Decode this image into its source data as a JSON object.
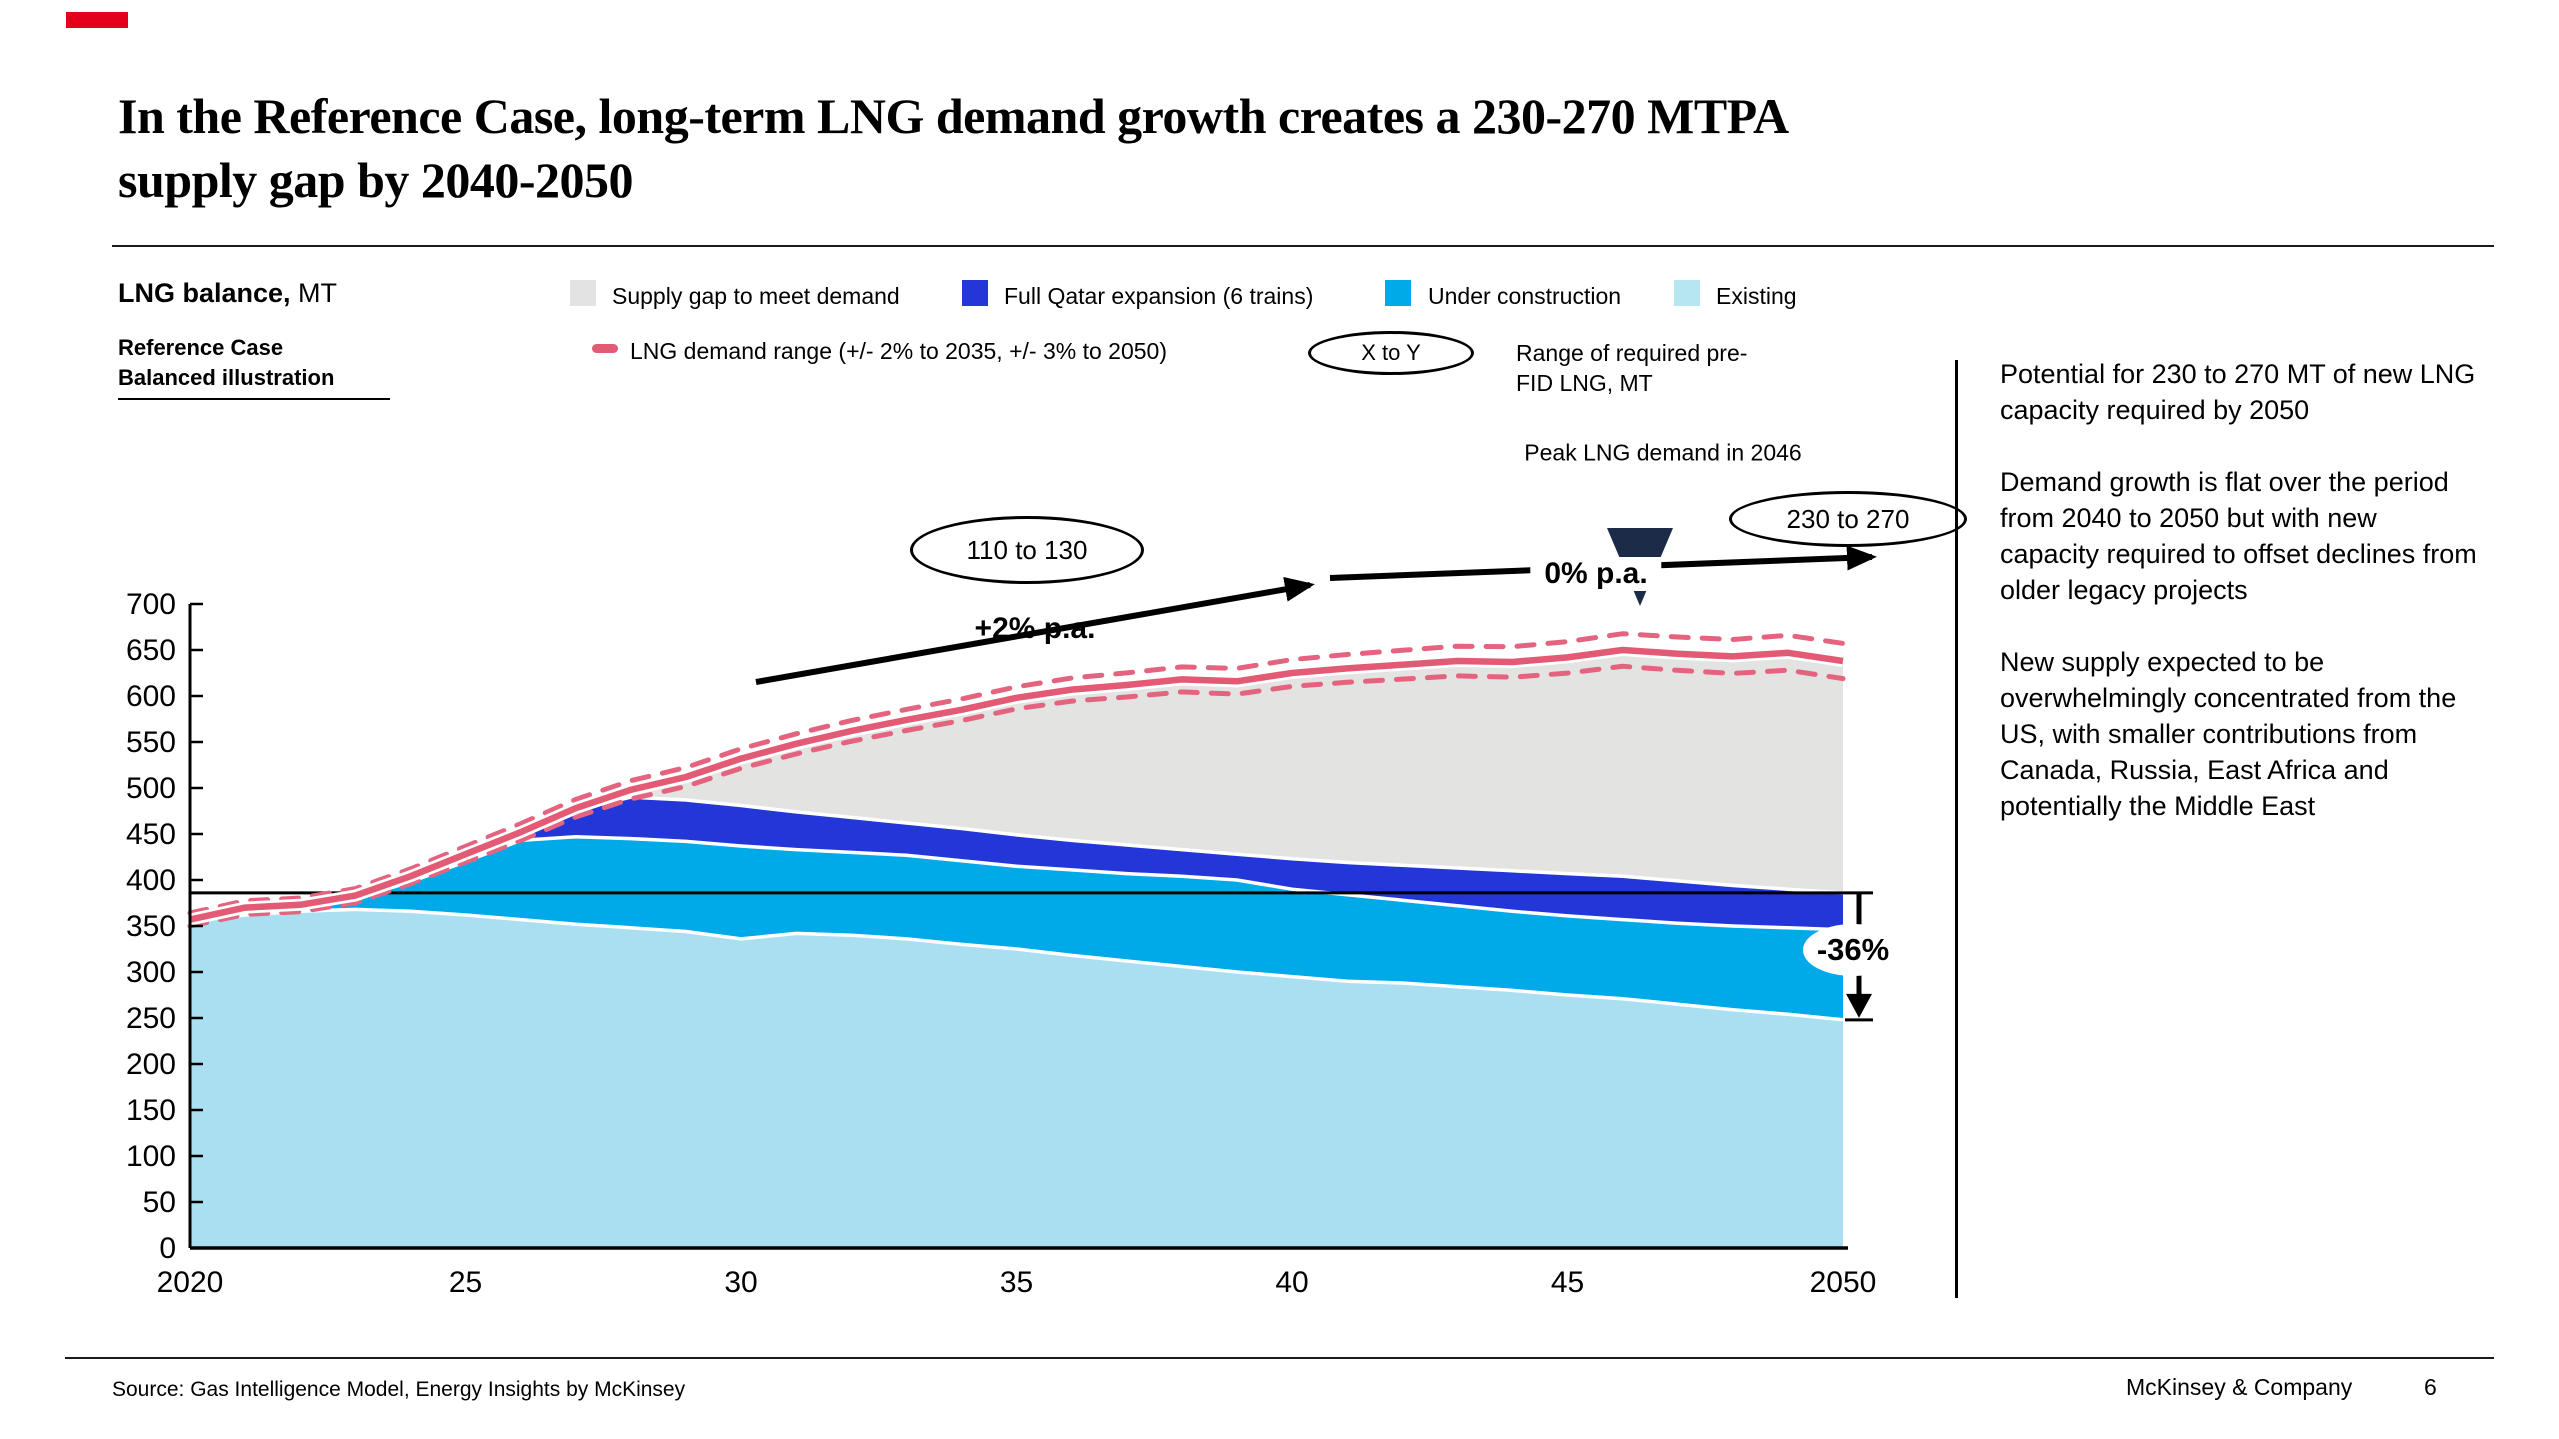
{
  "slide": {
    "accent_color": "#e2001a",
    "title_lines": [
      "In the Reference Case, long-term LNG demand growth creates a 230-270 MTPA",
      "supply gap by 2040-2050"
    ]
  },
  "chart_header": {
    "title_bold": "LNG balance,",
    "title_unit": " MT",
    "subtitle1": "Reference Case",
    "subtitle2": "Balanced illustration"
  },
  "legend": {
    "items": [
      {
        "label": "Supply gap to meet demand",
        "color": "#e3e3e3"
      },
      {
        "label": "Full Qatar expansion (6 trains)",
        "color": "#2336d7"
      },
      {
        "label": "Under construction",
        "color": "#00a9e8"
      },
      {
        "label": "Existing",
        "color": "#b7e6f3"
      }
    ],
    "line_item_label": "LNG demand range (+/- 2% to 2035, +/- 3% to 2050)",
    "line_item_color": "#e25a73",
    "range_oval_label": "X to Y",
    "range_caption_line1": "Range of required pre-",
    "range_caption_line2": "FID LNG, MT"
  },
  "annotations": {
    "peak_label": "Peak LNG demand in 2046",
    "oval_mid": "110 to 130",
    "oval_right": "230 to 270",
    "growth_label_1": "+2% p.a.",
    "growth_label_2": "0% p.a.",
    "decline_label": "-36%",
    "triangle_color": "#1c2b47"
  },
  "side_panel": {
    "paragraphs": [
      "Potential for 230 to 270 MT of new LNG capacity required by 2050",
      "Demand growth is flat over the period from 2040 to 2050 but with new capacity required to offset declines from older legacy projects",
      "New supply expected to be overwhelmingly concentrated from the US, with smaller contributions from Canada, Russia, East Africa and potentially the Middle East"
    ]
  },
  "footer": {
    "source": "Source: Gas Intelligence Model, Energy Insights by McKinsey",
    "brand": "McKinsey & Company",
    "page": "6"
  },
  "chart_data": {
    "type": "area",
    "title": "LNG balance, MT",
    "subtitle": "Reference Case — Balanced illustration",
    "ylabel": "MT",
    "ylim": [
      0,
      700
    ],
    "ytick_step": 50,
    "x": [
      2020,
      2021,
      2022,
      2023,
      2024,
      2025,
      2026,
      2027,
      2028,
      2029,
      2030,
      2031,
      2032,
      2033,
      2034,
      2035,
      2036,
      2037,
      2038,
      2039,
      2040,
      2041,
      2042,
      2043,
      2044,
      2045,
      2046,
      2047,
      2048,
      2049,
      2050
    ],
    "xtick_years": [
      2020,
      2025,
      2030,
      2035,
      2040,
      2045,
      2050
    ],
    "xtick_labels": [
      "2020",
      "25",
      "30",
      "35",
      "40",
      "45",
      "2050"
    ],
    "series": [
      {
        "name": "Existing",
        "color": "#a9dff0",
        "values": [
          355,
          362,
          366,
          368,
          366,
          362,
          357,
          352,
          348,
          344,
          336,
          342,
          340,
          336,
          330,
          325,
          318,
          312,
          306,
          300,
          295,
          290,
          288,
          284,
          280,
          275,
          271,
          265,
          259,
          254,
          248
        ]
      },
      {
        "name": "Under construction",
        "color": "#00a9e8",
        "values": [
          0,
          1,
          3,
          12,
          32,
          58,
          86,
          95,
          97,
          98,
          101,
          91,
          90,
          91,
          91,
          90,
          93,
          95,
          98,
          100,
          95,
          94,
          90,
          88,
          86,
          86,
          86,
          88,
          91,
          94,
          98
        ]
      },
      {
        "name": "Full Qatar expansion (6 trains)",
        "color": "#2336d7",
        "values": [
          0,
          0,
          0,
          0,
          0,
          0,
          5,
          29,
          45,
          45,
          44,
          41,
          38,
          35,
          35,
          34,
          32,
          31,
          29,
          28,
          33,
          35,
          38,
          41,
          44,
          46,
          47,
          46,
          44,
          42,
          40
        ]
      }
    ],
    "gap_series": {
      "name": "Supply gap to meet demand",
      "color": "#e3e3e2"
    },
    "demand_line": {
      "name": "LNG demand range (+/- 2% to 2035, +/- 3% to 2050)",
      "color": "#e25a73",
      "dashed_color": "#e4647f",
      "values": [
        357,
        370,
        373,
        383,
        404,
        428,
        452,
        478,
        498,
        512,
        532,
        548,
        562,
        574,
        585,
        598,
        607,
        612,
        618,
        616,
        625,
        630,
        634,
        638,
        637,
        642,
        650,
        646,
        643,
        647,
        638
      ]
    },
    "tolerance_pct": {
      "to_2035": 2,
      "to_2050": 3
    },
    "reference_line_value": 386,
    "decline_pct": -36,
    "peak_demand_year": 2046,
    "supply_gap_2035_range": "110 to 130",
    "supply_gap_2050_range": "230 to 270"
  }
}
